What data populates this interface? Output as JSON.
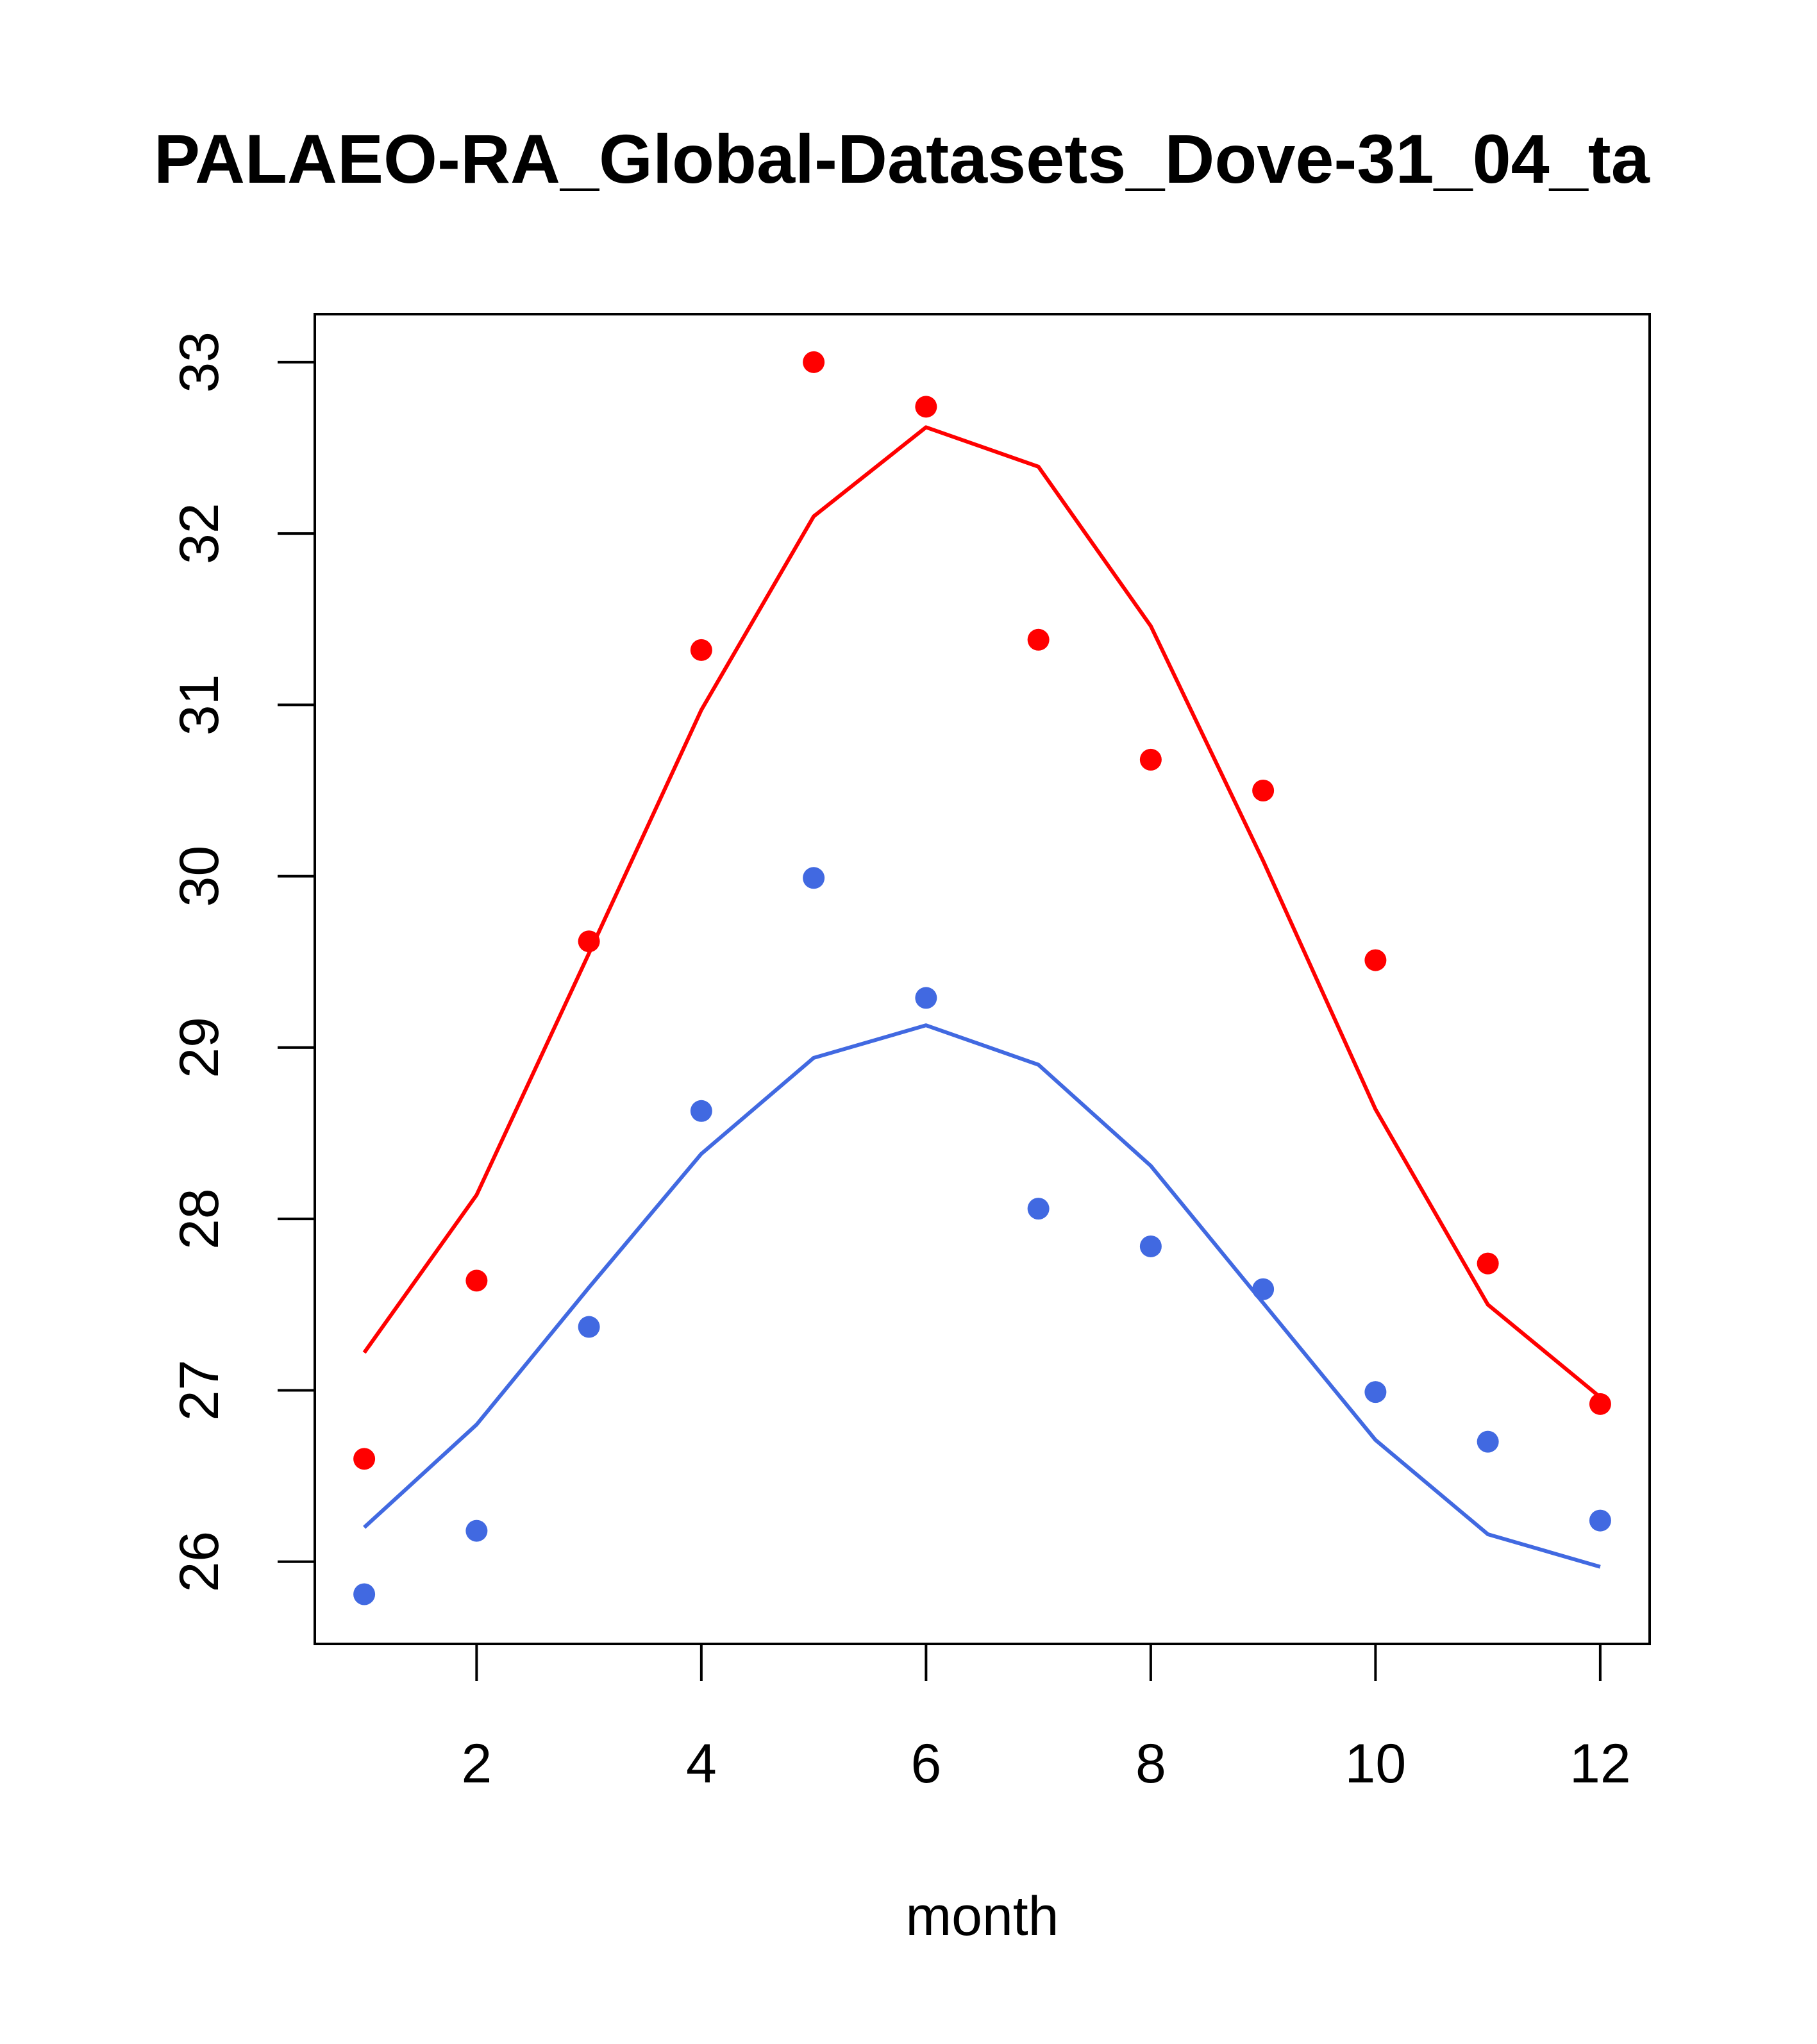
{
  "chart_data": {
    "type": "scatter",
    "title": "PALAEO-RA_Global-Datasets_Dove-31_04_ta",
    "xlabel": "month",
    "ylabel": "",
    "xlim": [
      0.56,
      12.44
    ],
    "ylim": [
      25.52,
      33.28
    ],
    "x_ticks": [
      2,
      4,
      6,
      8,
      10,
      12
    ],
    "y_ticks": [
      26,
      27,
      28,
      29,
      30,
      31,
      32,
      33
    ],
    "series": [
      {
        "name": "red-points",
        "kind": "points",
        "color": "#ff0000",
        "x": [
          1,
          2,
          3,
          4,
          5,
          6,
          7,
          8,
          9,
          10,
          11,
          12
        ],
        "values": [
          26.6,
          27.64,
          29.62,
          31.32,
          33.0,
          32.74,
          31.38,
          30.68,
          30.5,
          29.51,
          27.74,
          26.92
        ]
      },
      {
        "name": "red-line",
        "kind": "line",
        "color": "#ff0000",
        "x": [
          1,
          2,
          3,
          4,
          5,
          6,
          7,
          8,
          9,
          10,
          11,
          12
        ],
        "values": [
          27.22,
          28.14,
          29.55,
          30.97,
          32.1,
          32.62,
          32.39,
          31.46,
          30.09,
          28.64,
          27.5,
          26.96
        ]
      },
      {
        "name": "blue-points",
        "kind": "points",
        "color": "#4169e1",
        "x": [
          1,
          2,
          3,
          4,
          5,
          6,
          7,
          8,
          9,
          10,
          11,
          12
        ],
        "values": [
          25.81,
          26.18,
          27.37,
          28.63,
          29.99,
          29.29,
          28.06,
          27.84,
          27.59,
          26.99,
          26.7,
          26.24
        ]
      },
      {
        "name": "blue-line",
        "kind": "line",
        "color": "#4169e1",
        "x": [
          1,
          2,
          3,
          4,
          5,
          6,
          7,
          8,
          9,
          10,
          11,
          12
        ],
        "values": [
          26.2,
          26.8,
          27.6,
          28.38,
          28.94,
          29.13,
          28.9,
          28.31,
          27.51,
          26.71,
          26.16,
          25.97
        ]
      }
    ]
  }
}
